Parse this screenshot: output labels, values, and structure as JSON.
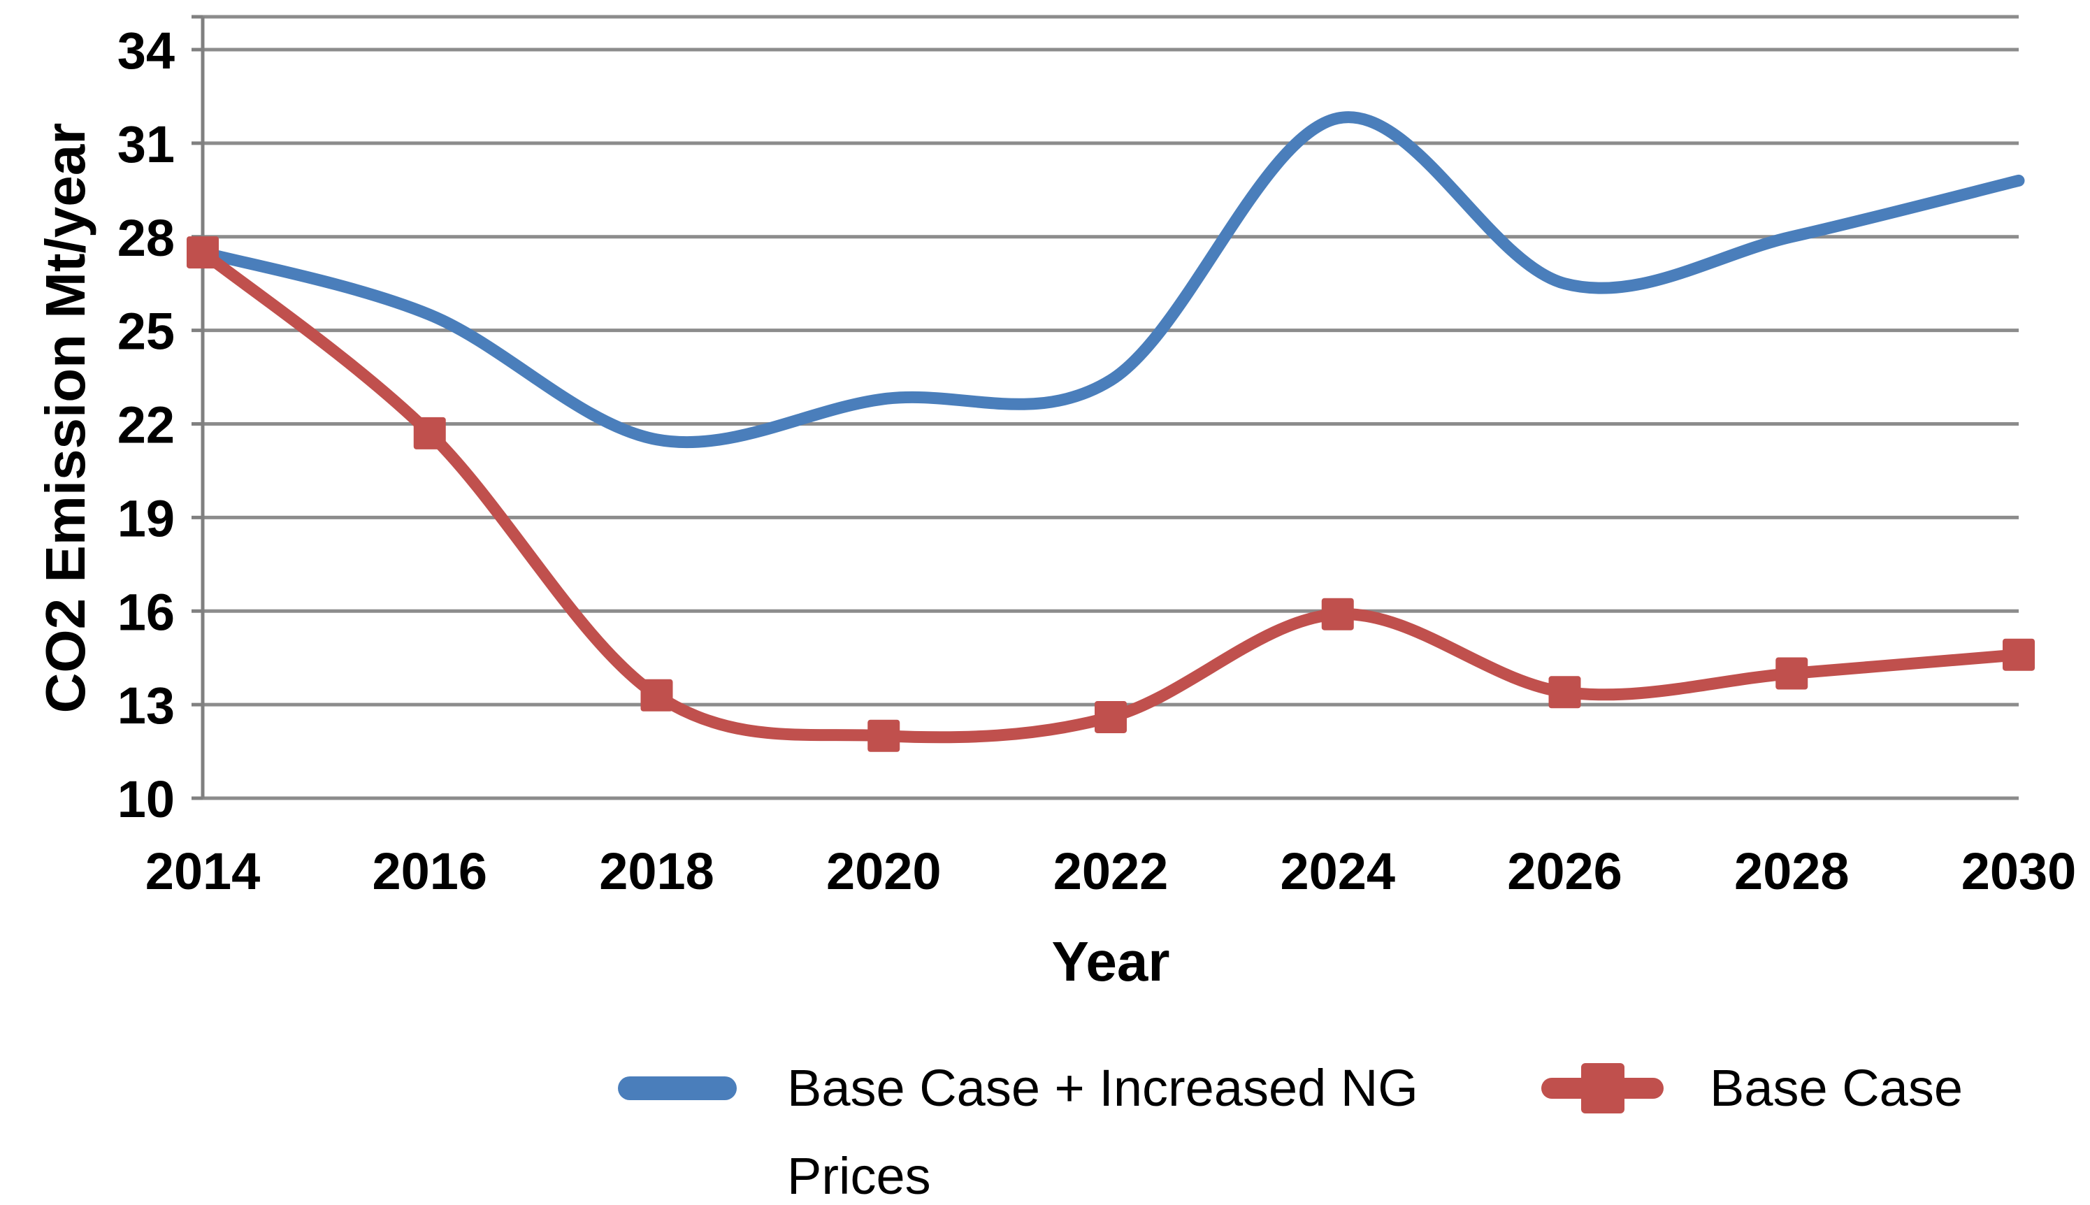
{
  "chart_data": {
    "type": "line",
    "title": "",
    "xlabel": "Year",
    "ylabel": "CO2 Emission Mt/year",
    "x": [
      2014,
      2016,
      2018,
      2020,
      2022,
      2024,
      2026,
      2028,
      2030
    ],
    "x_tick_labels": [
      "2014",
      "2016",
      "2018",
      "2020",
      "2022",
      "2024",
      "2026",
      "2028",
      "2030"
    ],
    "y_ticks": [
      10,
      13,
      16,
      19,
      22,
      25,
      28,
      31,
      34
    ],
    "ylim": [
      10,
      35.1
    ],
    "grid": "horizontal-only",
    "legend_position": "bottom-center",
    "gridline_color": "#8C8C8C",
    "axis_color": "#808080",
    "tick_label_color": "#000000",
    "smoothed_lines": true,
    "series": [
      {
        "name": "Base Case + Increased NG Prices",
        "color": "#4A7EBB",
        "marker": "none",
        "values": [
          27.5,
          25.5,
          21.5,
          22.8,
          23.4,
          31.8,
          26.5,
          28.0,
          29.8
        ]
      },
      {
        "name": "Base Case",
        "color": "#C0504D",
        "marker": "square",
        "values": [
          27.5,
          21.7,
          13.3,
          12.0,
          12.6,
          15.9,
          13.4,
          14.0,
          14.6
        ]
      }
    ]
  }
}
